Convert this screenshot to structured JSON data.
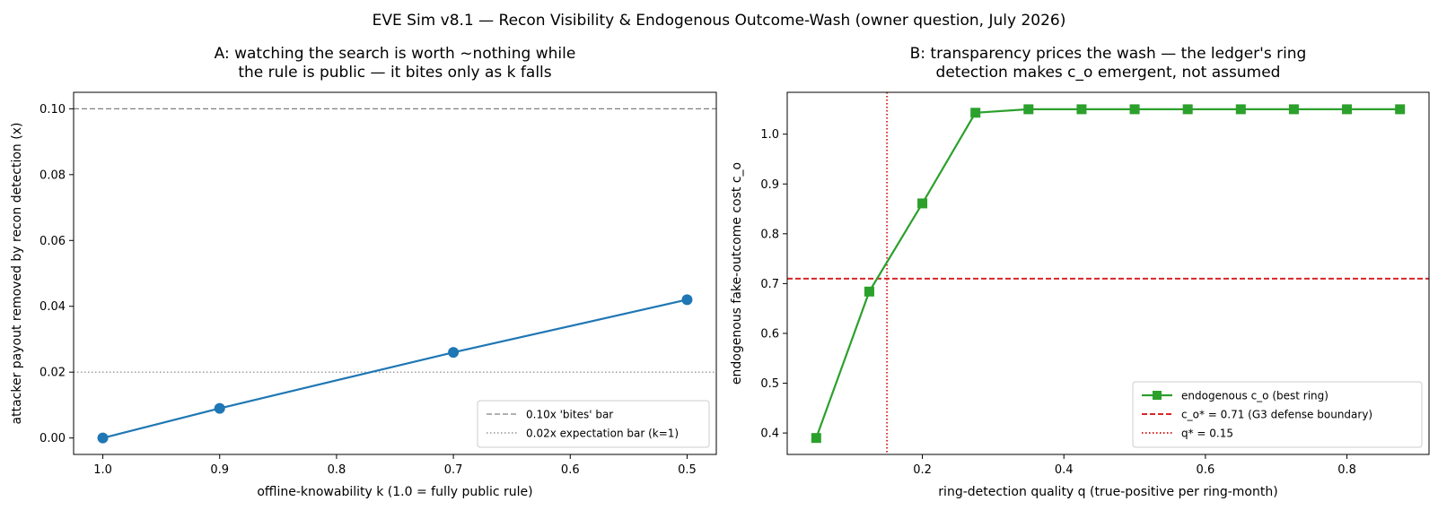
{
  "suptitle": "EVE Sim v8.1 — Recon Visibility & Endogenous Outcome-Wash (owner question, July 2026)",
  "chart_data": [
    {
      "type": "line",
      "title": [
        "A: watching the search is worth ~nothing while",
        "the rule is public — it bites only as k falls"
      ],
      "xlabel": "offline-knowability k (1.0 = fully public rule)",
      "ylabel": "attacker payout removed by recon detection (x)",
      "xlim": [
        1.025,
        0.475
      ],
      "ylim": [
        -0.005,
        0.105
      ],
      "xticks": [
        1.0,
        0.9,
        0.8,
        0.7,
        0.6,
        0.5
      ],
      "xtick_labels": [
        "1.0",
        "0.9",
        "0.8",
        "0.7",
        "0.6",
        "0.5"
      ],
      "yticks": [
        0.0,
        0.02,
        0.04,
        0.06,
        0.08,
        0.1
      ],
      "ytick_labels": [
        "0.00",
        "0.02",
        "0.04",
        "0.06",
        "0.08",
        "0.10"
      ],
      "grid": false,
      "legend_position": "lower-right",
      "series": [
        {
          "x": [
            1.0,
            0.9,
            0.7,
            0.5
          ],
          "y": [
            0.0,
            0.009,
            0.026,
            0.042
          ],
          "color": "#1f77b4",
          "marker": "circle"
        }
      ],
      "reference_lines": [
        {
          "orientation": "horizontal",
          "value": 0.1,
          "label": "0.10x 'bites' bar",
          "color": "#808080",
          "style": "dashed"
        },
        {
          "orientation": "horizontal",
          "value": 0.02,
          "label": "0.02x expectation bar (k=1)",
          "color": "#808080",
          "style": "dotted"
        }
      ]
    },
    {
      "type": "line",
      "title": [
        "B: transparency prices the wash — the ledger's ring",
        "detection makes c_o emergent, not assumed"
      ],
      "xlabel": "ring-detection quality q (true-positive per ring-month)",
      "ylabel": "endogenous fake-outcome cost c_o",
      "xlim": [
        0.009,
        0.916
      ],
      "ylim": [
        0.357,
        1.084
      ],
      "xticks": [
        0.2,
        0.4,
        0.6,
        0.8
      ],
      "xtick_labels": [
        "0.2",
        "0.4",
        "0.6",
        "0.8"
      ],
      "yticks": [
        0.4,
        0.5,
        0.6,
        0.7,
        0.8,
        0.9,
        1.0
      ],
      "ytick_labels": [
        "0.4",
        "0.5",
        "0.6",
        "0.7",
        "0.8",
        "0.9",
        "1.0"
      ],
      "grid": false,
      "legend_position": "lower-right",
      "series": [
        {
          "name": "endogenous c_o (best ring)",
          "x": [
            0.05,
            0.125,
            0.2,
            0.275,
            0.35,
            0.425,
            0.5,
            0.575,
            0.65,
            0.725,
            0.8,
            0.875
          ],
          "y": [
            0.39,
            0.684,
            0.861,
            1.043,
            1.05,
            1.05,
            1.05,
            1.05,
            1.05,
            1.05,
            1.05,
            1.05
          ],
          "color": "#2ca02c",
          "marker": "square"
        }
      ],
      "reference_lines": [
        {
          "orientation": "horizontal",
          "value": 0.71,
          "label": "c_o* = 0.71 (G3 defense boundary)",
          "color": "#d62728",
          "style": "dashed"
        },
        {
          "orientation": "vertical",
          "value": 0.15,
          "label": "q* = 0.15",
          "color": "#d62728",
          "style": "dotted"
        }
      ]
    }
  ]
}
